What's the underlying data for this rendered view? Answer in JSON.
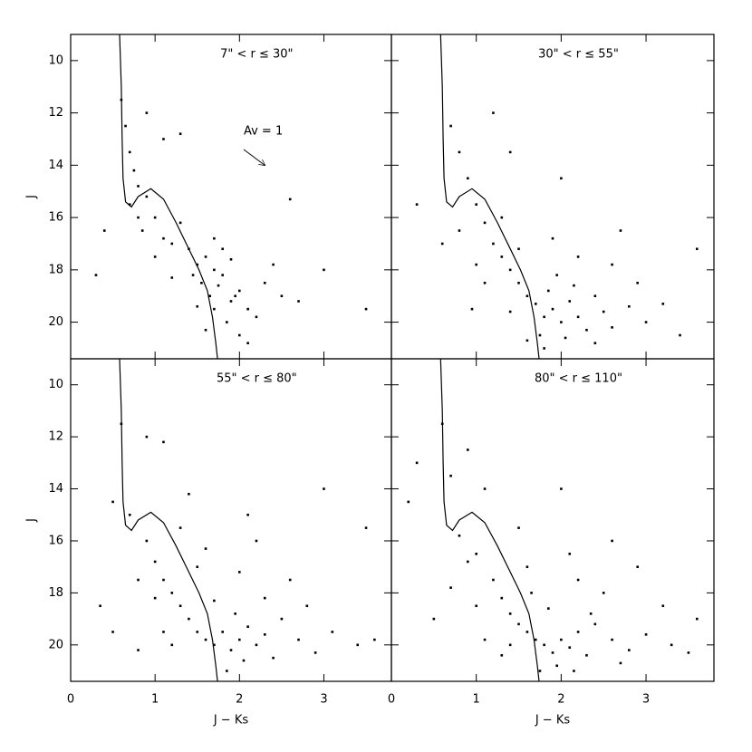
{
  "chart_data": [
    {
      "type": "scatter",
      "title": "7\" < r ≤ 30\"",
      "annotation": "Av = 1",
      "ylabel": "J",
      "xlim": [
        0,
        3.8
      ],
      "ylim": [
        9,
        21.4
      ],
      "y_inverted": true,
      "xticks": [
        0,
        1,
        2,
        3
      ],
      "yticks": [
        10,
        12,
        14,
        16,
        18,
        20
      ],
      "series": [
        {
          "type": "scatter",
          "color": "#000000",
          "x": [
            0.6,
            0.65,
            0.7,
            0.75,
            0.8,
            0.7,
            0.9,
            1.0,
            0.85,
            1.1,
            1.2,
            1.3,
            1.0,
            1.4,
            1.5,
            1.45,
            1.6,
            1.55,
            1.7,
            1.65,
            1.75,
            1.8,
            1.9,
            1.7,
            2.0,
            1.85,
            2.1,
            2.2,
            1.6,
            1.9,
            2.3,
            2.5,
            2.0,
            1.5,
            1.2,
            0.4,
            0.3,
            2.7,
            3.0,
            3.5,
            2.6,
            1.3,
            1.1,
            2.1,
            1.8,
            2.4,
            0.8,
            0.9,
            1.7,
            1.95
          ],
          "y": [
            11.5,
            12.5,
            13.5,
            14.2,
            14.8,
            15.5,
            15.2,
            16.0,
            16.5,
            16.8,
            17.0,
            16.2,
            17.5,
            17.2,
            17.8,
            18.2,
            17.5,
            18.5,
            18.0,
            19.0,
            18.6,
            18.2,
            19.2,
            19.5,
            18.8,
            20.0,
            19.5,
            19.8,
            20.3,
            17.6,
            18.5,
            19.0,
            20.5,
            19.4,
            18.3,
            16.5,
            18.2,
            19.2,
            18.0,
            19.5,
            15.3,
            12.8,
            13.0,
            20.8,
            17.2,
            17.8,
            16.0,
            12.0,
            16.8,
            19.0
          ]
        },
        {
          "type": "line",
          "color": "#000000",
          "x": [
            0.58,
            0.6,
            0.61,
            0.62,
            0.65,
            0.72,
            0.8,
            0.95,
            1.1,
            1.25,
            1.4,
            1.52,
            1.62,
            1.68,
            1.72,
            1.74
          ],
          "y": [
            9.0,
            11,
            13,
            14.5,
            15.4,
            15.6,
            15.2,
            14.9,
            15.3,
            16.2,
            17.2,
            18.0,
            18.8,
            19.8,
            20.8,
            21.4
          ]
        }
      ]
    },
    {
      "type": "scatter",
      "title": "30\" < r ≤ 55\"",
      "xlim": [
        0,
        3.8
      ],
      "ylim": [
        9,
        21.4
      ],
      "y_inverted": true,
      "xticks": [
        0,
        1,
        2,
        3
      ],
      "yticks": [
        10,
        12,
        14,
        16,
        18,
        20
      ],
      "series": [
        {
          "type": "scatter",
          "color": "#000000",
          "x": [
            0.7,
            0.8,
            0.9,
            1.0,
            1.1,
            1.2,
            1.3,
            1.4,
            1.5,
            1.6,
            1.7,
            1.8,
            1.9,
            2.0,
            2.1,
            2.2,
            2.3,
            1.75,
            1.85,
            1.95,
            2.05,
            2.4,
            2.5,
            2.6,
            2.8,
            3.0,
            3.2,
            1.5,
            1.3,
            1.0,
            0.8,
            0.6,
            2.2,
            2.6,
            2.9,
            3.6,
            1.2,
            1.4,
            2.0,
            0.3,
            1.6,
            2.4,
            1.8,
            1.1,
            2.7,
            3.4,
            1.9,
            1.4,
            2.15,
            0.95
          ],
          "y": [
            12.5,
            13.5,
            14.5,
            15.5,
            16.2,
            17.0,
            17.5,
            18.0,
            18.5,
            19.0,
            19.3,
            19.8,
            19.5,
            20.0,
            19.2,
            19.8,
            20.3,
            20.5,
            18.8,
            18.2,
            20.6,
            19.0,
            19.6,
            20.2,
            19.4,
            20.0,
            19.3,
            17.2,
            16.0,
            17.8,
            16.5,
            17.0,
            17.5,
            17.8,
            18.5,
            17.2,
            12.0,
            13.5,
            14.5,
            15.5,
            20.7,
            20.8,
            21.0,
            18.5,
            16.5,
            20.5,
            16.8,
            19.6,
            18.6,
            19.5
          ]
        },
        {
          "type": "line",
          "color": "#000000",
          "x": [
            0.58,
            0.6,
            0.61,
            0.62,
            0.65,
            0.72,
            0.8,
            0.95,
            1.1,
            1.25,
            1.4,
            1.52,
            1.62,
            1.68,
            1.72,
            1.74
          ],
          "y": [
            9.0,
            11,
            13,
            14.5,
            15.4,
            15.6,
            15.2,
            14.9,
            15.3,
            16.2,
            17.2,
            18.0,
            18.8,
            19.8,
            20.8,
            21.4
          ]
        }
      ]
    },
    {
      "type": "scatter",
      "title": "55\" < r ≤ 80\"",
      "xlabel": "J − Ks",
      "ylabel": "J",
      "xlim": [
        0,
        3.8
      ],
      "ylim": [
        9,
        21.4
      ],
      "y_inverted": true,
      "xticks": [
        0,
        1,
        2,
        3
      ],
      "yticks": [
        10,
        12,
        14,
        16,
        18,
        20
      ],
      "series": [
        {
          "type": "scatter",
          "color": "#000000",
          "x": [
            0.6,
            0.9,
            1.1,
            0.5,
            0.7,
            0.9,
            1.0,
            1.1,
            1.2,
            1.3,
            1.0,
            0.8,
            1.4,
            1.5,
            1.6,
            1.7,
            1.8,
            1.9,
            2.0,
            2.1,
            2.2,
            2.3,
            1.95,
            2.05,
            1.85,
            2.4,
            2.5,
            2.7,
            2.9,
            3.1,
            3.4,
            3.6,
            2.6,
            2.2,
            1.5,
            1.3,
            0.35,
            0.5,
            1.2,
            2.1,
            3.0,
            3.5,
            1.7,
            2.3,
            1.4,
            0.8,
            1.6,
            2.8,
            1.1,
            2.0
          ],
          "y": [
            11.5,
            12.0,
            12.2,
            14.5,
            15.0,
            16.0,
            16.8,
            17.5,
            18.0,
            18.5,
            18.2,
            17.5,
            19.0,
            19.5,
            19.8,
            20.0,
            19.5,
            20.2,
            19.8,
            19.3,
            20.0,
            19.6,
            18.8,
            20.6,
            21.0,
            20.5,
            19.0,
            19.8,
            20.3,
            19.5,
            20.0,
            19.8,
            17.5,
            16.0,
            17.0,
            15.5,
            18.5,
            19.5,
            20.0,
            15.0,
            14.0,
            15.5,
            18.3,
            18.2,
            14.2,
            20.2,
            16.3,
            18.5,
            19.5,
            17.2
          ]
        },
        {
          "type": "line",
          "color": "#000000",
          "x": [
            0.58,
            0.6,
            0.61,
            0.62,
            0.65,
            0.72,
            0.8,
            0.95,
            1.1,
            1.25,
            1.4,
            1.52,
            1.62,
            1.68,
            1.72,
            1.74
          ],
          "y": [
            9.0,
            11,
            13,
            14.5,
            15.4,
            15.6,
            15.2,
            14.9,
            15.3,
            16.2,
            17.2,
            18.0,
            18.8,
            19.8,
            20.8,
            21.4
          ]
        }
      ]
    },
    {
      "type": "scatter",
      "title": "80\" < r ≤ 110\"",
      "xlabel": "J − Ks",
      "xlim": [
        0,
        3.8
      ],
      "ylim": [
        9,
        21.4
      ],
      "y_inverted": true,
      "xticks": [
        0,
        1,
        2,
        3
      ],
      "yticks": [
        10,
        12,
        14,
        16,
        18,
        20
      ],
      "series": [
        {
          "type": "scatter",
          "color": "#000000",
          "x": [
            0.6,
            0.7,
            0.9,
            1.1,
            0.2,
            0.8,
            1.0,
            1.2,
            1.3,
            1.4,
            1.5,
            1.6,
            1.7,
            1.8,
            1.9,
            2.0,
            2.1,
            2.2,
            2.3,
            1.95,
            2.4,
            2.6,
            2.8,
            3.0,
            3.3,
            3.5,
            2.5,
            2.2,
            1.6,
            1.0,
            0.7,
            0.5,
            1.3,
            1.85,
            2.1,
            2.9,
            3.2,
            0.3,
            1.5,
            2.0,
            2.6,
            1.75,
            2.7,
            1.1,
            2.35,
            3.6,
            0.9,
            1.4,
            2.15,
            1.65
          ],
          "y": [
            11.5,
            13.5,
            12.5,
            14.0,
            14.5,
            15.8,
            16.5,
            17.5,
            18.2,
            18.8,
            19.2,
            19.5,
            19.8,
            20.0,
            20.3,
            19.8,
            20.1,
            19.5,
            20.4,
            20.8,
            19.2,
            19.8,
            20.2,
            19.6,
            20.0,
            20.3,
            18.0,
            17.5,
            17.0,
            18.5,
            17.8,
            19.0,
            20.4,
            18.6,
            16.5,
            17.0,
            18.5,
            13.0,
            15.5,
            14.0,
            16.0,
            21.0,
            20.7,
            19.8,
            18.8,
            19.0,
            16.8,
            20.0,
            21.0,
            18.0
          ]
        },
        {
          "type": "line",
          "color": "#000000",
          "x": [
            0.58,
            0.6,
            0.61,
            0.62,
            0.65,
            0.72,
            0.8,
            0.95,
            1.1,
            1.25,
            1.4,
            1.52,
            1.62,
            1.68,
            1.72,
            1.74
          ],
          "y": [
            9.0,
            11,
            13,
            14.5,
            15.4,
            15.6,
            15.2,
            14.9,
            15.3,
            16.2,
            17.2,
            18.0,
            18.8,
            19.8,
            20.8,
            21.4
          ]
        }
      ]
    }
  ]
}
